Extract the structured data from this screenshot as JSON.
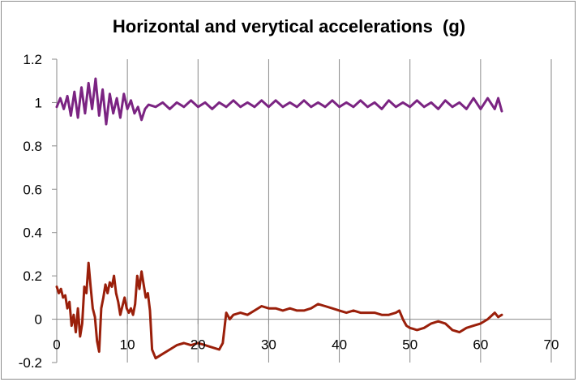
{
  "chart_data": {
    "type": "line",
    "title": "Horizontal and verytical accelerations  (g)",
    "xlabel": "",
    "ylabel": "",
    "xlim": [
      0,
      70
    ],
    "ylim": [
      -0.2,
      1.2
    ],
    "x_ticks": [
      0,
      10,
      20,
      30,
      40,
      50,
      60,
      70
    ],
    "y_ticks": [
      -0.2,
      0,
      0.2,
      0.4,
      0.6,
      0.8,
      1,
      1.2
    ],
    "x_tick_labels": [
      "0",
      "10",
      "20",
      "30",
      "40",
      "50",
      "60",
      "70"
    ],
    "y_tick_labels": [
      "-0.2",
      "0",
      "0.2",
      "0.4",
      "0.6",
      "0.8",
      "1",
      "1.2"
    ],
    "grid": "vertical",
    "legend": "none",
    "series": [
      {
        "color": "#7b2482",
        "x": [
          0,
          0.5,
          1,
          1.5,
          2,
          2.5,
          3,
          3.5,
          4,
          4.5,
          5,
          5.5,
          6,
          6.5,
          7,
          7.5,
          8,
          8.5,
          9,
          9.5,
          10,
          10.5,
          11,
          11.5,
          12,
          12.5,
          13,
          14,
          15,
          16,
          17,
          18,
          19,
          20,
          21,
          22,
          23,
          24,
          25,
          26,
          27,
          28,
          29,
          30,
          31,
          32,
          33,
          34,
          35,
          36,
          37,
          38,
          39,
          40,
          41,
          42,
          43,
          44,
          45,
          46,
          47,
          48,
          49,
          50,
          51,
          52,
          53,
          54,
          55,
          56,
          57,
          58,
          59,
          60,
          61,
          62,
          62.5,
          63
        ],
        "values": [
          0.98,
          1.02,
          0.97,
          1.03,
          0.94,
          1.05,
          0.93,
          1.07,
          0.95,
          1.09,
          0.97,
          1.11,
          0.94,
          1.06,
          0.9,
          1.04,
          0.95,
          1.02,
          0.93,
          1.04,
          0.97,
          1.01,
          0.95,
          0.98,
          0.92,
          0.97,
          0.99,
          0.98,
          1.0,
          0.97,
          1.0,
          0.98,
          1.01,
          0.98,
          1.0,
          0.97,
          1.0,
          0.98,
          1.01,
          0.98,
          1.0,
          0.98,
          1.01,
          0.98,
          1.01,
          0.98,
          1.0,
          0.98,
          1.01,
          0.98,
          1.0,
          0.98,
          1.01,
          0.98,
          1.0,
          0.98,
          1.01,
          0.98,
          1.0,
          0.97,
          1.01,
          0.98,
          1.0,
          0.98,
          1.01,
          0.98,
          1.0,
          0.97,
          1.01,
          0.98,
          1.0,
          0.97,
          1.02,
          0.97,
          1.02,
          0.97,
          1.02,
          0.96
        ]
      },
      {
        "color": "#9a1f0a",
        "x": [
          0,
          0.3,
          0.6,
          0.9,
          1.2,
          1.5,
          1.8,
          2.1,
          2.4,
          2.7,
          3.0,
          3.3,
          3.6,
          3.9,
          4.2,
          4.5,
          4.8,
          5.1,
          5.4,
          5.7,
          6.0,
          6.3,
          6.6,
          6.9,
          7.2,
          7.5,
          7.8,
          8.1,
          8.4,
          8.7,
          9.0,
          9.3,
          9.6,
          9.9,
          10.2,
          10.5,
          10.8,
          11.1,
          11.4,
          11.7,
          12.0,
          12.3,
          12.6,
          12.9,
          13.2,
          13.5,
          14,
          15,
          16,
          17,
          18,
          19,
          20,
          21,
          22,
          23,
          23.5,
          24,
          24.5,
          25,
          26,
          27,
          28,
          29,
          30,
          31,
          32,
          33,
          34,
          35,
          36,
          37,
          38,
          39,
          40,
          41,
          42,
          43,
          44,
          45,
          46,
          47,
          48,
          48.5,
          49,
          49.5,
          50,
          51,
          52,
          53,
          54,
          55,
          56,
          57,
          58,
          59,
          60,
          61,
          62,
          62.5,
          63
        ],
        "values": [
          0.15,
          0.12,
          0.14,
          0.1,
          0.11,
          0.05,
          0.08,
          -0.03,
          0.02,
          -0.06,
          0.05,
          -0.08,
          -0.02,
          0.15,
          0.12,
          0.26,
          0.15,
          0.05,
          0.01,
          -0.1,
          -0.15,
          0.05,
          0.1,
          0.16,
          0.12,
          0.17,
          0.15,
          0.2,
          0.12,
          0.08,
          0.02,
          0.06,
          0.1,
          0.05,
          0.03,
          0.05,
          0.02,
          0.07,
          0.2,
          0.14,
          0.22,
          0.16,
          0.1,
          0.12,
          0.04,
          -0.14,
          -0.18,
          -0.16,
          -0.14,
          -0.12,
          -0.11,
          -0.12,
          -0.11,
          -0.12,
          -0.13,
          -0.14,
          -0.11,
          0.03,
          0.0,
          0.02,
          0.03,
          0.02,
          0.04,
          0.06,
          0.05,
          0.05,
          0.04,
          0.05,
          0.04,
          0.04,
          0.05,
          0.07,
          0.06,
          0.05,
          0.04,
          0.03,
          0.04,
          0.03,
          0.03,
          0.03,
          0.02,
          0.02,
          0.03,
          0.04,
          0.0,
          -0.03,
          -0.04,
          -0.05,
          -0.04,
          -0.02,
          -0.01,
          -0.02,
          -0.05,
          -0.06,
          -0.04,
          -0.03,
          -0.02,
          0.0,
          0.03,
          0.01,
          0.02
        ]
      }
    ]
  }
}
